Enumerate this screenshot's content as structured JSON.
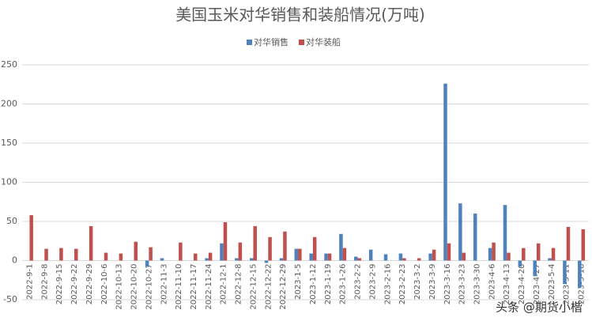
{
  "chart_data": {
    "type": "bar",
    "title": "美国玉米对华销售和装船情况(万吨)",
    "categories": [
      "2022-9-1",
      "2022-9-8",
      "2022-9-15",
      "2022-9-22",
      "2022-9-29",
      "2022-10-6",
      "2022-10-13",
      "2022-10-20",
      "2022-10-27",
      "2022-11-3",
      "2022-11-10",
      "2022-11-17",
      "2022-11-24",
      "2022-12-1",
      "2022-12-8",
      "2022-12-15",
      "2022-12-22",
      "2022-12-29",
      "2023-1-5",
      "2023-1-12",
      "2023-1-19",
      "2023-1-26",
      "2023-2-2",
      "2023-2-9",
      "2023-2-16",
      "2023-2-23",
      "2023-3-2",
      "2023-3-9",
      "2023-3-16",
      "2023-3-23",
      "2023-3-30",
      "2023-4-6",
      "2023-4-13",
      "2023-4-20",
      "2023-4-27",
      "2023-5-4",
      "2023-5-11",
      "2023-5-18"
    ],
    "series": [
      {
        "name": "对华销售",
        "color": "#4f81bd",
        "values": [
          0,
          0,
          0,
          0,
          0,
          0,
          0,
          0,
          -8,
          3,
          0,
          0,
          3,
          22,
          3,
          3,
          -3,
          3,
          15,
          9,
          9,
          34,
          5,
          14,
          8,
          9,
          0,
          9,
          226,
          73,
          60,
          16,
          71,
          -8,
          -20,
          3,
          -30,
          -35
        ]
      },
      {
        "name": "对华装船",
        "color": "#c0504d",
        "values": [
          58,
          15,
          16,
          15,
          44,
          10,
          9,
          24,
          17,
          0,
          23,
          9,
          10,
          49,
          23,
          44,
          30,
          37,
          15,
          30,
          9,
          16,
          3,
          0,
          0,
          3,
          3,
          14,
          22,
          10,
          0,
          23,
          10,
          16,
          22,
          16,
          43,
          40
        ]
      }
    ],
    "ylim": [
      -50,
      250
    ],
    "yticks": [
      -50,
      0,
      50,
      100,
      150,
      200,
      250
    ],
    "grid": true,
    "legend": "top",
    "watermark": "头条 @期货小楷"
  }
}
